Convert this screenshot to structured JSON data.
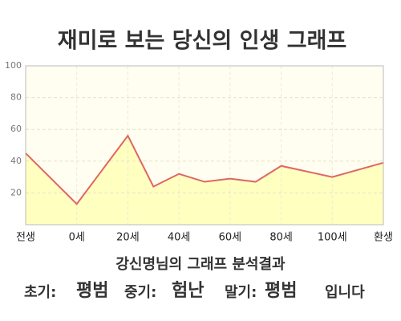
{
  "header": {
    "title": "재미로 보는 당신의 인생 그래프"
  },
  "chart_data": {
    "type": "area",
    "x": [
      -20,
      0,
      20,
      30,
      40,
      50,
      60,
      70,
      80,
      100,
      120
    ],
    "values": [
      45,
      13,
      56,
      24,
      32,
      27,
      29,
      27,
      37,
      30,
      39
    ],
    "color": "#e06666",
    "fill": "#ffffc0",
    "xlim": [
      -20,
      120
    ],
    "ylim": [
      0,
      100
    ],
    "yticks": [
      20,
      40,
      60,
      80,
      100
    ],
    "xticks": [
      {
        "value": -20,
        "label": "전생"
      },
      {
        "value": 0,
        "label": "0세"
      },
      {
        "value": 20,
        "label": "20세"
      },
      {
        "value": 40,
        "label": "40세"
      },
      {
        "value": 60,
        "label": "60세"
      },
      {
        "value": 80,
        "label": "80세"
      },
      {
        "value": 100,
        "label": "100세"
      },
      {
        "value": 120,
        "label": "환생"
      }
    ],
    "grid": true
  },
  "summary": {
    "title": "강신명님의 그래프 분석결과",
    "items": [
      {
        "label": "초기:",
        "value": "평범"
      },
      {
        "label": "중기:",
        "value": "험난"
      },
      {
        "label": "말기:",
        "value": "평범"
      }
    ],
    "ending": "입니다"
  }
}
